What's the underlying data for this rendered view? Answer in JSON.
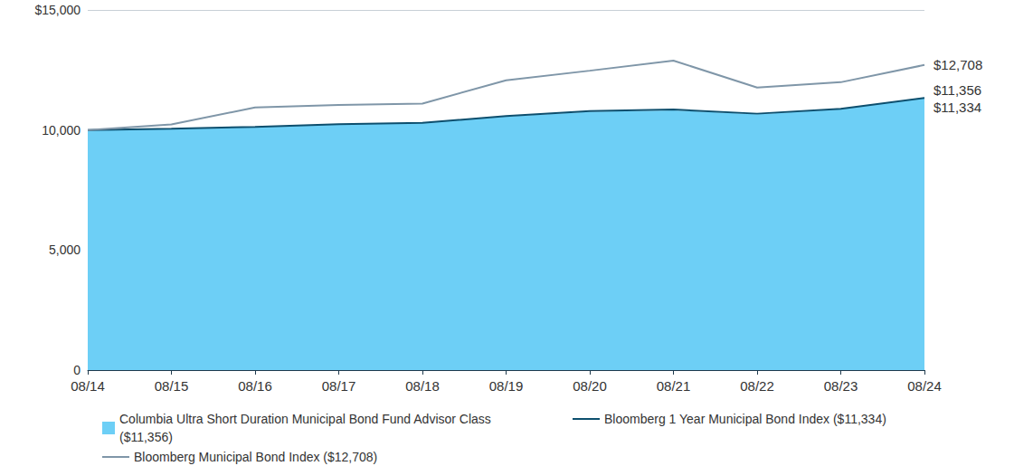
{
  "chart_data": {
    "type": "line",
    "categories": [
      "08/14",
      "08/15",
      "08/16",
      "08/17",
      "08/18",
      "08/19",
      "08/20",
      "08/21",
      "08/22",
      "08/23",
      "08/24"
    ],
    "ylim": [
      0,
      15000
    ],
    "yticks": [
      0,
      {
        "value": 5000,
        "label": "5,000"
      },
      {
        "value": 10000,
        "label": "10,000"
      },
      {
        "value": 15000,
        "label": "$15,000"
      }
    ],
    "grid": true,
    "legend": "bottom",
    "series": [
      {
        "name": "Columbia Ultra Short Duration Municipal Bond Fund Advisor Class ($11,356)",
        "type": "area",
        "color": "#6dcff6",
        "values": [
          10000,
          10060,
          10140,
          10230,
          10300,
          10560,
          10760,
          10820,
          10660,
          10860,
          11356
        ],
        "end_label": "$11,356"
      },
      {
        "name": "Bloomberg 1 Year Municipal Bond Index ($11,334)",
        "type": "line",
        "color": "#0d4f6e",
        "values": [
          10000,
          10050,
          10130,
          10240,
          10300,
          10580,
          10790,
          10850,
          10680,
          10880,
          11334
        ],
        "end_label": "$11,334"
      },
      {
        "name": "Bloomberg Municipal Bond Index ($12,708)",
        "type": "line",
        "color": "#7f96a8",
        "values": [
          10000,
          10230,
          10940,
          11040,
          11100,
          12070,
          12470,
          12890,
          11770,
          11990,
          12708
        ],
        "end_label": "$12,708"
      }
    ]
  }
}
